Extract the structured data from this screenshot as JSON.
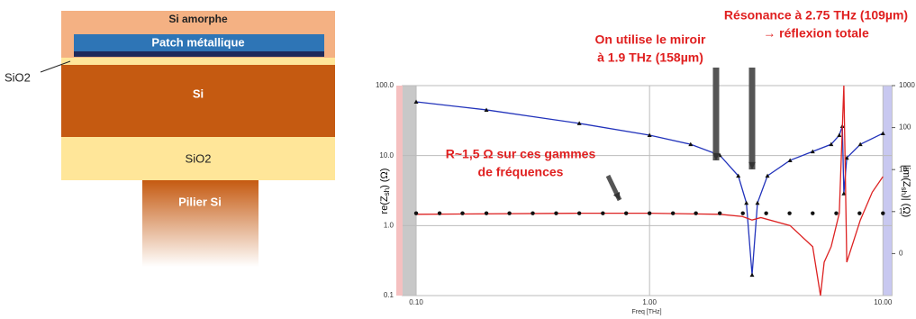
{
  "diagram": {
    "layers": [
      "Si amorphe",
      "Patch métallique",
      "Si",
      "SiO2",
      "Pilier Si"
    ],
    "side_label": "SiO2"
  },
  "chart_data": {
    "type": "line",
    "x_scale": "log",
    "y_scale": "log",
    "grid": true,
    "xlabel": "Freq [THz]",
    "ylabel": [
      "re(Z",
      "sh",
      ") (Ω)"
    ],
    "y2label": [
      "|im(Z",
      "sh",
      ")| (Ω)"
    ],
    "xlim": [
      0.0875,
      10.9
    ],
    "ylim": [
      0.1,
      100
    ],
    "y2lim": [
      0.01,
      1000
    ],
    "xticks": [
      {
        "value": 0.1,
        "label": "0.10"
      },
      {
        "value": 1,
        "label": "1.00"
      },
      {
        "value": 10,
        "label": "10.00"
      }
    ],
    "yticks": [
      {
        "value": 100,
        "label": "100.0"
      },
      {
        "value": 10,
        "label": "10.0"
      },
      {
        "value": 1,
        "label": "1.0"
      },
      {
        "value": 0.1,
        "label": "0.1"
      }
    ],
    "y2ticks": [
      1000,
      100,
      10,
      1,
      {
        "value": 0.1,
        "label": "0"
      }
    ],
    "series": [
      {
        "color": "#2233bb",
        "axis": "y2",
        "markers": true,
        "x": [
          0.1,
          0.2,
          0.5,
          1,
          1.5,
          2,
          2.4,
          2.6,
          2.75,
          2.9,
          3.2,
          4,
          5,
          6,
          6.5,
          6.7,
          6.8,
          7,
          8,
          10
        ],
        "values": [
          411,
          264,
          126,
          66,
          40,
          22,
          7.1,
          1.6,
          0.031,
          1.6,
          7.1,
          16.6,
          27,
          40,
          66,
          108,
          2.7,
          19,
          40,
          73
        ]
      },
      {
        "color": "#dd2222",
        "markers": false,
        "x": [
          0.1,
          0.5,
          1,
          2,
          2.5,
          2.75,
          3,
          4,
          5,
          5.4,
          5.6,
          6,
          6.5,
          6.8,
          7,
          8,
          9,
          10
        ],
        "values": [
          1.45,
          1.5,
          1.5,
          1.45,
          1.35,
          1.2,
          1.3,
          1.0,
          0.5,
          0.1,
          0.3,
          0.5,
          1.5,
          100,
          0.3,
          1.2,
          3,
          5
        ]
      },
      {
        "color": "#111111",
        "mode": "markers",
        "x": [
          0.1,
          0.126,
          0.158,
          0.2,
          0.251,
          0.316,
          0.398,
          0.5,
          0.631,
          0.794,
          1,
          1.26,
          1.58,
          2,
          2.51,
          3.16,
          3.98,
          5,
          6.31,
          7.94,
          10
        ],
        "values": [
          1.5,
          1.5,
          1.5,
          1.5,
          1.5,
          1.5,
          1.5,
          1.5,
          1.5,
          1.5,
          1.5,
          1.5,
          1.5,
          1.5,
          1.5,
          1.5,
          1.5,
          1.5,
          1.5,
          1.5,
          1.5
        ]
      }
    ],
    "annotations": [
      [
        "On utilise le miroir",
        "à 1.9 THz (158µm)"
      ],
      [
        "Résonance à 2.75 THz (109µm)",
        "→ réflexion totale"
      ],
      [
        "R~1,5 Ω sur ces gammes",
        "de fréquences"
      ]
    ]
  }
}
